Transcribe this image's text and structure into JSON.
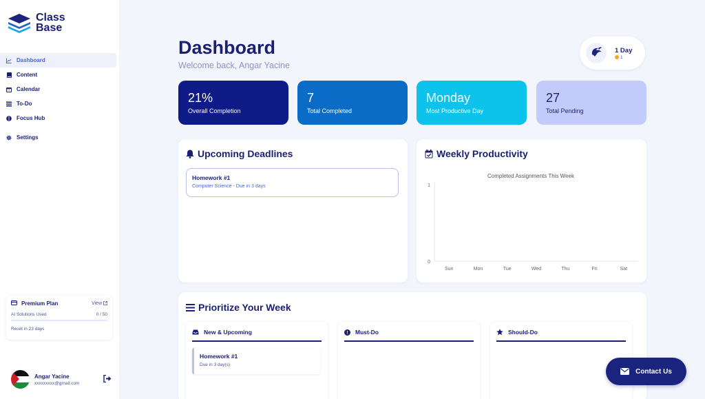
{
  "app": {
    "name": "Class Base"
  },
  "sidebar": {
    "items": [
      {
        "label": "Dashboard",
        "icon": "chart-line-icon",
        "active": true
      },
      {
        "label": "Content",
        "icon": "book-icon"
      },
      {
        "label": "Calendar",
        "icon": "calendar-icon"
      },
      {
        "label": "To-Do",
        "icon": "list-icon"
      },
      {
        "label": "Focus Hub",
        "icon": "brain-icon"
      },
      {
        "label": "Settings",
        "icon": "gear-icon"
      }
    ],
    "plan": {
      "title": "Premium Plan",
      "view_label": "View",
      "usage_label": "AI Solutions Used",
      "usage_value": "0 / 50",
      "usage_fraction": 0,
      "reset_label": "Reset in 23 days"
    },
    "user": {
      "name": "Angar Yacine",
      "email": "xxxxxxxxx@gmail.com"
    }
  },
  "header": {
    "title": "Dashboard",
    "subtitle": "Welcome back, Angar Yacine",
    "streak_days": "1 Day",
    "streak_coins": "1"
  },
  "stats": [
    {
      "value": "21%",
      "label": "Overall Completion",
      "color": "#0f1b87"
    },
    {
      "value": "7",
      "label": "Total Completed",
      "color": "#0a6cc7"
    },
    {
      "value": "Monday",
      "label": "Most Productive Day",
      "color": "#0dc3ec"
    },
    {
      "value": "27",
      "label": "Total Pending",
      "color": "#c3cbfb"
    }
  ],
  "deadlines": {
    "title": "Upcoming Deadlines",
    "items": [
      {
        "title": "Homework #1",
        "subtitle": "Computer Science - Due in 3 days"
      }
    ]
  },
  "weekly": {
    "title": "Weekly Productivity"
  },
  "chart_data": {
    "type": "line",
    "title": "Completed Assignments This Week",
    "categories": [
      "Sun",
      "Mon",
      "Tue",
      "Wed",
      "Thu",
      "Fri",
      "Sat"
    ],
    "values": [
      0,
      0,
      0,
      0,
      0,
      0,
      0
    ],
    "yticks": [
      0,
      1
    ],
    "ylim": [
      0,
      1
    ],
    "xlabel": "",
    "ylabel": "",
    "grid": false
  },
  "prioritize": {
    "title": "Prioritize Your Week",
    "columns": [
      {
        "label": "New & Upcoming",
        "icon": "inbox-icon"
      },
      {
        "label": "Must-Do",
        "icon": "exclamation-circle-icon"
      },
      {
        "label": "Should-Do",
        "icon": "star-icon"
      }
    ],
    "task": {
      "title": "Homework #1",
      "subtitle": "Due in 3 day(s)"
    }
  },
  "contact": {
    "label": "Contact Us"
  },
  "colors": {
    "primary": "#1a1f71",
    "accent": "#4a63d9",
    "background": "#f3f5fd"
  }
}
